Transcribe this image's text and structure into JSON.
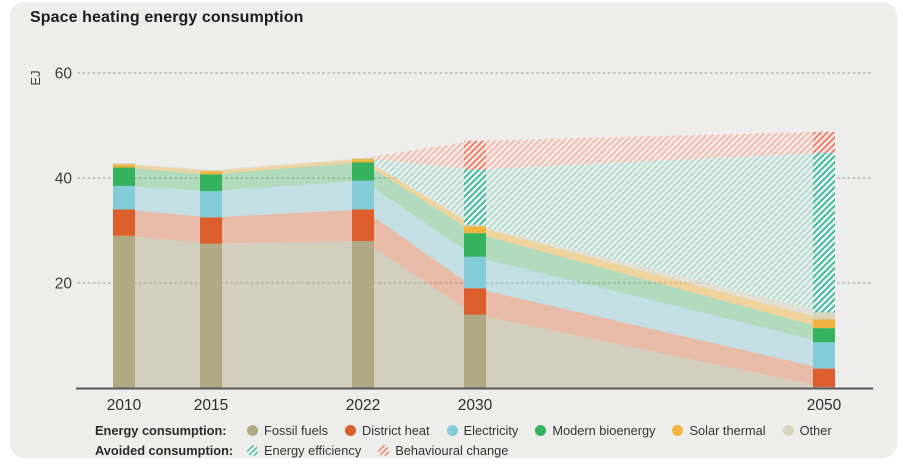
{
  "title": "Space heating energy consumption",
  "y_axis": {
    "unit_label": "EJ",
    "ticks": [
      20,
      40,
      60
    ]
  },
  "x_axis": {
    "years": [
      "2010",
      "2015",
      "2022",
      "2030",
      "2050"
    ]
  },
  "legend": {
    "consumption_label": "Energy consumption:",
    "avoided_label": "Avoided consumption:"
  },
  "colors": {
    "card_background": "#ededeb",
    "axis_line": "#58585a",
    "gridline": "#b5b5b3",
    "text": "#333333"
  },
  "chart_data": {
    "type": "area",
    "title": "Space heating energy consumption",
    "ylabel": "EJ",
    "x": [
      2010,
      2015,
      2022,
      2030,
      2050
    ],
    "ylim": [
      0,
      65
    ],
    "grid": "dotted horizontal at 20/40/60",
    "legend_position": "bottom",
    "series": [
      {
        "name": "Fossil fuels",
        "group": "consumption",
        "color": "#b1a884",
        "values": [
          29,
          27.5,
          28,
          14,
          0.2
        ]
      },
      {
        "name": "District heat",
        "group": "consumption",
        "color": "#dc5e2c",
        "values": [
          5,
          5,
          6,
          5,
          3.5
        ]
      },
      {
        "name": "Electricity",
        "group": "consumption",
        "color": "#84cbd8",
        "values": [
          4.5,
          5,
          5.5,
          6,
          5
        ]
      },
      {
        "name": "Modern bioenergy",
        "group": "consumption",
        "color": "#35b25e",
        "values": [
          3.5,
          3.2,
          3.5,
          4.5,
          2.7
        ]
      },
      {
        "name": "Solar thermal",
        "group": "consumption",
        "color": "#f0b43f",
        "values": [
          0.6,
          0.6,
          0.6,
          1.3,
          1.7
        ]
      },
      {
        "name": "Other",
        "group": "consumption",
        "color": "#d8d4bd",
        "values": [
          0.2,
          0.2,
          0.2,
          0.3,
          1.3
        ]
      },
      {
        "name": "Energy efficiency",
        "group": "avoided",
        "hatch": "teal",
        "color": "#44bba0",
        "values": [
          0,
          0,
          0,
          10.5,
          30.4
        ]
      },
      {
        "name": "Behavioural change",
        "group": "avoided",
        "hatch": "red",
        "color": "#ea7f6c",
        "values": [
          0,
          0,
          0,
          5.5,
          4
        ]
      }
    ]
  }
}
